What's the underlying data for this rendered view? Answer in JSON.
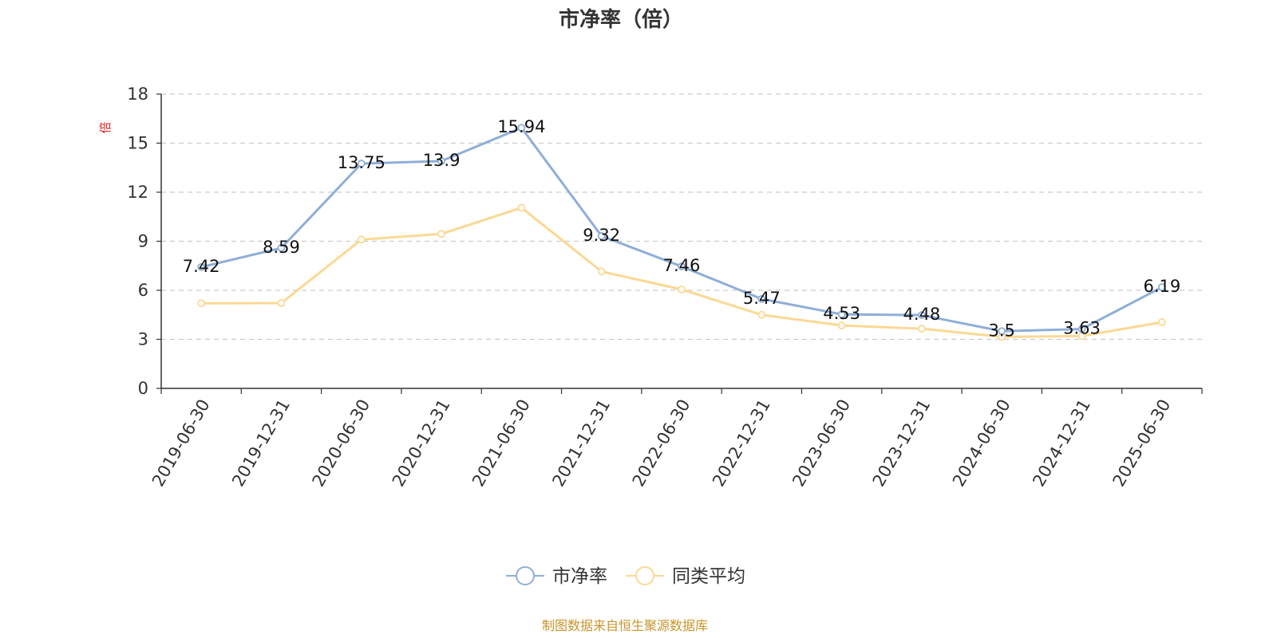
{
  "chart_data": {
    "type": "line",
    "title": "市净率（倍）",
    "ylabel": "倍",
    "xlabel": "",
    "ylim": [
      0,
      18
    ],
    "yticks": [
      0,
      3,
      6,
      9,
      12,
      15,
      18
    ],
    "grid": true,
    "legend_position": "bottom-center",
    "categories": [
      "2019-06-30",
      "2019-12-31",
      "2020-06-30",
      "2020-12-31",
      "2021-06-30",
      "2021-12-31",
      "2022-06-30",
      "2022-12-31",
      "2023-06-30",
      "2023-12-31",
      "2024-06-30",
      "2024-12-31",
      "2025-06-30"
    ],
    "series": [
      {
        "name": "市净率",
        "color": "#8eaed8",
        "values": [
          7.42,
          8.59,
          13.75,
          13.9,
          15.94,
          9.32,
          7.46,
          5.47,
          4.53,
          4.48,
          3.5,
          3.63,
          6.19
        ],
        "labels": [
          "7.42",
          "8.59",
          "13.75",
          "13.9",
          "15.94",
          "9.32",
          "7.46",
          "5.47",
          "4.53",
          "4.48",
          "3.5",
          "3.63",
          "6.19"
        ]
      },
      {
        "name": "同类平均",
        "color": "#fbd894",
        "values": [
          5.2,
          5.22,
          9.1,
          9.45,
          11.05,
          7.15,
          6.05,
          4.5,
          3.85,
          3.65,
          3.15,
          3.2,
          4.05
        ]
      }
    ],
    "source": "制图数据来自恒生聚源数据库"
  }
}
